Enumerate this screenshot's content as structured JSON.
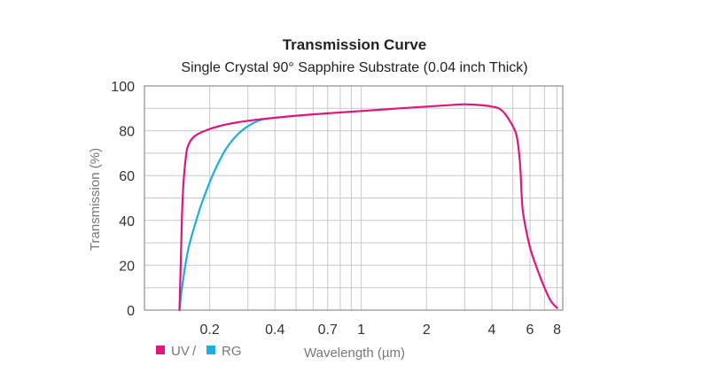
{
  "chart_data": {
    "type": "line",
    "title": "Transmission Curve",
    "subtitle": "Single Crystal 90° Sapphire Substrate (0.04 inch Thick)",
    "ylabel": "Transmission (%)",
    "xlabel": "Wavelength (µm)",
    "x_scale": "log",
    "xlim": [
      0.1,
      8.5
    ],
    "ylim": [
      0,
      100
    ],
    "x_ticks": [
      {
        "value": 0.2,
        "label": "0.2"
      },
      {
        "value": 0.4,
        "label": "0.4"
      },
      {
        "value": 0.7,
        "label": "0.7"
      },
      {
        "value": 1,
        "label": "1"
      },
      {
        "value": 2,
        "label": "2"
      },
      {
        "value": 4,
        "label": "4"
      },
      {
        "value": 6,
        "label": "6"
      },
      {
        "value": 8,
        "label": "8"
      }
    ],
    "y_ticks": [
      {
        "value": 0,
        "label": "0"
      },
      {
        "value": 20,
        "label": "20"
      },
      {
        "value": 40,
        "label": "40"
      },
      {
        "value": 60,
        "label": "60"
      },
      {
        "value": 80,
        "label": "80"
      },
      {
        "value": 100,
        "label": "100"
      }
    ],
    "x_gridlines": [
      0.1,
      0.2,
      0.3,
      0.4,
      0.5,
      0.6,
      0.7,
      0.8,
      0.9,
      1,
      2,
      3,
      4,
      5,
      6,
      7,
      8
    ],
    "y_gridlines": [
      0,
      10,
      20,
      30,
      40,
      50,
      60,
      70,
      80,
      90,
      100
    ],
    "grid": true,
    "legend": {
      "position": "bottom-left",
      "separator": "/"
    },
    "series": [
      {
        "name": "UV",
        "color": "#e2147e",
        "points": [
          [
            0.145,
            0
          ],
          [
            0.147,
            20
          ],
          [
            0.15,
            50
          ],
          [
            0.155,
            68
          ],
          [
            0.16,
            74
          ],
          [
            0.17,
            77.5
          ],
          [
            0.19,
            80
          ],
          [
            0.22,
            82
          ],
          [
            0.27,
            83.8
          ],
          [
            0.35,
            85.2
          ],
          [
            0.5,
            86.7
          ],
          [
            0.7,
            87.8
          ],
          [
            1.0,
            88.8
          ],
          [
            1.5,
            90
          ],
          [
            2.0,
            90.8
          ],
          [
            2.5,
            91.4
          ],
          [
            3.0,
            91.8
          ],
          [
            3.5,
            91.5
          ],
          [
            4.0,
            90.8
          ],
          [
            4.4,
            89.5
          ],
          [
            4.8,
            85
          ],
          [
            5.2,
            78
          ],
          [
            5.4,
            65
          ],
          [
            5.5,
            50
          ],
          [
            5.6,
            42
          ],
          [
            6.0,
            28
          ],
          [
            6.5,
            18
          ],
          [
            7.0,
            10
          ],
          [
            7.5,
            4
          ],
          [
            8.0,
            1
          ]
        ]
      },
      {
        "name": "RG",
        "color": "#1aaee3",
        "points": [
          [
            0.145,
            0
          ],
          [
            0.15,
            12
          ],
          [
            0.16,
            28
          ],
          [
            0.18,
            45
          ],
          [
            0.2,
            57
          ],
          [
            0.22,
            66
          ],
          [
            0.24,
            72.5
          ],
          [
            0.27,
            78.5
          ],
          [
            0.3,
            82
          ],
          [
            0.33,
            84.2
          ],
          [
            0.35,
            85
          ]
        ]
      }
    ]
  }
}
